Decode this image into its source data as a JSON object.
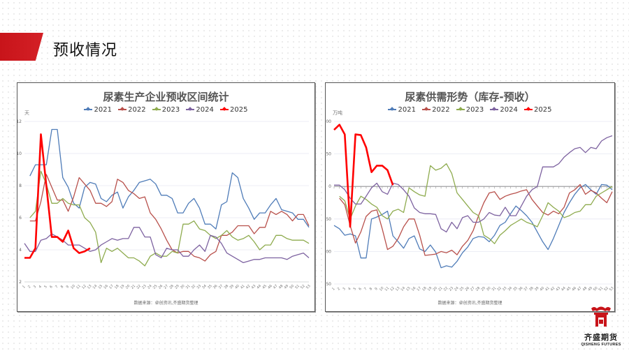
{
  "header": {
    "title": "预收情况"
  },
  "logo": {
    "name_cn": "齐盛期货",
    "name_en": "QISHENG FUTURES"
  },
  "colors": {
    "accent": "#c8141a",
    "series_2021": "#4f7cb8",
    "series_2022": "#b8504b",
    "series_2023": "#8eab4e",
    "series_2024": "#7d62a0",
    "series_2025": "#ff0000"
  },
  "chart_data": [
    {
      "type": "line",
      "title": "尿素生产企业预收区间统计",
      "ylabel": "天",
      "xlabel": "",
      "ylim": [
        2,
        12
      ],
      "yticks": [
        2,
        4,
        6,
        8,
        10,
        12
      ],
      "grid": true,
      "legend_position": "top",
      "source": "数据来源：卓创资讯,齐盛期货整理",
      "x": [
        1,
        2,
        3,
        4,
        5,
        6,
        7,
        8,
        9,
        10,
        11,
        12,
        13,
        14,
        15,
        16,
        17,
        18,
        19,
        20,
        21,
        22,
        23,
        24,
        25,
        26,
        27,
        28,
        29,
        30,
        31,
        32,
        33,
        34,
        35,
        36,
        37,
        38,
        39,
        40,
        41,
        42,
        43,
        44,
        45,
        46,
        47,
        48,
        49,
        50,
        51,
        52,
        53
      ],
      "series": [
        {
          "name": "2021",
          "color": "#4f7cb8",
          "width": 1.3,
          "values": [
            null,
            8.6,
            9.3,
            9.3,
            9.3,
            11.5,
            11.5,
            8.5,
            7.9,
            6.9,
            6.6,
            7.9,
            8.2,
            8.1,
            7.2,
            7.0,
            7.4,
            7.6,
            6.6,
            7.3,
            7.7,
            8.2,
            8.3,
            8.4,
            8.1,
            7.4,
            7.4,
            7.2,
            6.3,
            6.3,
            6.9,
            7.2,
            6.6,
            5.6,
            5.6,
            5.3,
            6.8,
            7.0,
            8.8,
            8.5,
            7.2,
            6.6,
            5.9,
            6.3,
            6.3,
            6.8,
            7.2,
            6.5,
            6.4,
            6.3,
            5.9,
            5.9,
            5.4
          ]
        },
        {
          "name": "2022",
          "color": "#b8504b",
          "width": 1.3,
          "values": [
            null,
            5.8,
            5.8,
            7.0,
            8.7,
            7.9,
            7.1,
            7.1,
            6.4,
            7.3,
            8.5,
            8.1,
            7.7,
            6.9,
            6.9,
            6.7,
            7.0,
            8.4,
            8.2,
            7.7,
            7.5,
            7.2,
            7.3,
            6.3,
            5.9,
            5.3,
            4.6,
            4.0,
            3.8,
            3.9,
            3.9,
            3.6,
            3.5,
            3.3,
            3.7,
            3.9,
            4.9,
            4.9,
            5.1,
            5.5,
            5.5,
            5.5,
            5.0,
            5.4,
            5.4,
            6.4,
            6.2,
            6.4,
            6.2,
            5.8,
            6.2,
            6.2,
            5.5
          ]
        },
        {
          "name": "2023",
          "color": "#8eab4e",
          "width": 1.3,
          "values": [
            null,
            6.0,
            6.4,
            8.9,
            8.1,
            6.9,
            6.9,
            7.2,
            6.9,
            6.8,
            6.8,
            6.0,
            5.7,
            5.1,
            3.2,
            4.1,
            3.9,
            4.1,
            3.8,
            3.5,
            3.5,
            3.3,
            3.0,
            3.6,
            3.8,
            3.6,
            3.6,
            3.9,
            3.8,
            5.6,
            5.6,
            5.8,
            5.3,
            5.2,
            4.9,
            4.7,
            4.9,
            5.2,
            4.8,
            4.6,
            4.7,
            4.9,
            4.5,
            4.0,
            4.3,
            4.3,
            4.9,
            4.9,
            4.7,
            4.6,
            4.6,
            4.6,
            4.4
          ]
        },
        {
          "name": "2024",
          "color": "#7d62a0",
          "width": 1.3,
          "values": [
            4.4,
            3.9,
            3.9,
            4.6,
            4.7,
            5.0,
            4.8,
            4.6,
            4.3,
            4.3,
            4.3,
            4.1,
            3.9,
            4.0,
            4.3,
            4.5,
            4.7,
            4.6,
            4.7,
            4.7,
            5.4,
            5.4,
            4.8,
            4.8,
            3.7,
            3.5,
            4.1,
            4.0,
            4.0,
            3.6,
            3.6,
            4.0,
            4.3,
            3.9,
            4.9,
            4.8,
            4.4,
            3.8,
            3.6,
            3.4,
            3.2,
            3.3,
            3.4,
            3.4,
            3.5,
            3.5,
            3.5,
            3.5,
            3.4,
            3.6,
            3.7,
            3.8,
            3.5
          ]
        },
        {
          "name": "2025",
          "color": "#ff0000",
          "width": 2.6,
          "values": [
            3.5,
            3.5,
            4.1,
            11.2,
            8.0,
            4.8,
            4.8,
            4.5,
            5.2,
            4.1,
            3.8,
            3.9,
            4.1
          ]
        }
      ]
    },
    {
      "type": "line",
      "title": "尿素供需形势（库存-预收）",
      "ylabel": "万吨",
      "xlabel": "",
      "ylim": [
        -150,
        100
      ],
      "yticks": [
        -150,
        -100,
        -50,
        0,
        50,
        100
      ],
      "grid": true,
      "legend_position": "top",
      "source": "数据来源：卓创资讯,齐盛期货整理",
      "x": [
        1,
        2,
        3,
        4,
        5,
        6,
        7,
        8,
        9,
        10,
        11,
        12,
        13,
        14,
        15,
        16,
        17,
        18,
        19,
        20,
        21,
        22,
        23,
        24,
        25,
        26,
        27,
        28,
        29,
        30,
        31,
        32,
        33,
        34,
        35,
        36,
        37,
        38,
        39,
        40,
        41,
        42,
        43,
        44,
        45,
        46,
        47,
        48,
        49,
        50,
        51,
        52,
        53
      ],
      "series": [
        {
          "name": "2021",
          "color": "#4f7cb8",
          "width": 1.3,
          "values": [
            -60,
            -65,
            -75,
            -73,
            -76,
            -110,
            -110,
            -50,
            -47,
            -43,
            -38,
            -76,
            -85,
            -95,
            -80,
            -76,
            -96,
            -100,
            -90,
            -101,
            -125,
            -122,
            -124,
            -115,
            -102,
            -93,
            -80,
            -77,
            -78,
            -85,
            -75,
            -60,
            -55,
            -42,
            -30,
            -37,
            -45,
            -55,
            -70,
            -85,
            -97,
            -80,
            -60,
            -40,
            -25,
            -12,
            -2,
            3,
            -5,
            -12,
            3,
            2,
            -5
          ]
        },
        {
          "name": "2022",
          "color": "#b8504b",
          "width": 1.3,
          "values": [
            null,
            -18,
            -28,
            -60,
            -87,
            -70,
            -46,
            -38,
            -36,
            -65,
            -97,
            -92,
            -80,
            -62,
            -50,
            -50,
            -75,
            -106,
            -105,
            -104,
            -100,
            -102,
            -98,
            -105,
            -92,
            -83,
            -68,
            -45,
            -25,
            -10,
            -8,
            -20,
            -15,
            -12,
            -10,
            -7,
            -5,
            -20,
            -30,
            -40,
            -44,
            -38,
            -42,
            -32,
            -10,
            -5,
            3,
            -12,
            -6,
            -10,
            -18,
            -25,
            -8
          ]
        },
        {
          "name": "2023",
          "color": "#8eab4e",
          "width": 1.3,
          "values": [
            null,
            -15,
            -22,
            -50,
            -30,
            -15,
            -20,
            -27,
            -32,
            -45,
            -50,
            -38,
            -35,
            -40,
            -2,
            -8,
            -13,
            -15,
            32,
            25,
            28,
            35,
            20,
            -10,
            -20,
            -30,
            -40,
            -45,
            -75,
            -80,
            -88,
            -75,
            -68,
            -60,
            -55,
            -50,
            -55,
            -58,
            -62,
            -45,
            -25,
            -32,
            -38,
            -48,
            -45,
            -40,
            -38,
            -28,
            -28,
            -15,
            -10,
            -5,
            0
          ]
        },
        {
          "name": "2024",
          "color": "#7d62a0",
          "width": 1.3,
          "values": [
            2,
            2,
            -5,
            -18,
            -27,
            -27,
            -15,
            -2,
            5,
            -8,
            -12,
            5,
            3,
            -5,
            -15,
            -33,
            -40,
            -42,
            -42,
            -43,
            -65,
            -70,
            -55,
            -65,
            -48,
            -45,
            -55,
            -55,
            -50,
            -40,
            -44,
            -45,
            -32,
            -45,
            -45,
            -30,
            -15,
            -5,
            0,
            30,
            30,
            30,
            35,
            45,
            52,
            58,
            60,
            52,
            60,
            58,
            70,
            75,
            78
          ]
        },
        {
          "name": "2025",
          "color": "#ff0000",
          "width": 2.6,
          "values": [
            87,
            95,
            80,
            -62,
            80,
            79,
            60,
            22,
            32,
            32,
            25,
            2
          ]
        }
      ]
    }
  ]
}
